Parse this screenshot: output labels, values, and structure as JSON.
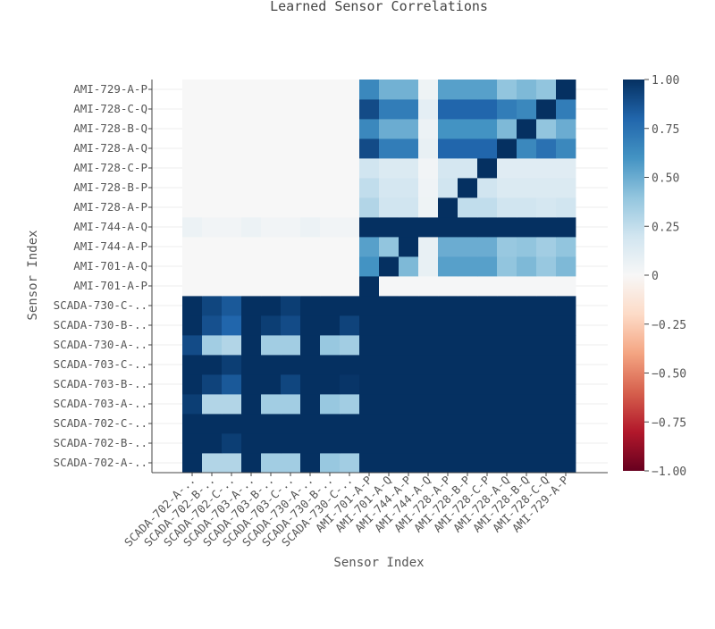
{
  "chart_data": {
    "type": "heatmap",
    "title": "Learned Sensor Correlations",
    "xlabel": "Sensor Index",
    "ylabel": "Sensor Index",
    "x_labels": [
      "SCADA-702-A-..",
      "SCADA-702-B-..",
      "SCADA-702-C-..",
      "SCADA-703-A-..",
      "SCADA-703-B-..",
      "SCADA-703-C-..",
      "SCADA-730-A-..",
      "SCADA-730-B-..",
      "SCADA-730-C-..",
      "AMI-701-A-P",
      "AMI-701-A-Q",
      "AMI-744-A-P",
      "AMI-744-A-Q",
      "AMI-728-A-P",
      "AMI-728-B-P",
      "AMI-728-C-P",
      "AMI-728-A-Q",
      "AMI-728-B-Q",
      "AMI-728-C-Q",
      "AMI-729-A-P"
    ],
    "y_labels": [
      "SCADA-702-A-..",
      "SCADA-702-B-..",
      "SCADA-702-C-..",
      "SCADA-703-A-..",
      "SCADA-703-B-..",
      "SCADA-703-C-..",
      "SCADA-730-A-..",
      "SCADA-730-B-..",
      "SCADA-730-C-..",
      "AMI-701-A-P",
      "AMI-701-A-Q",
      "AMI-744-A-P",
      "AMI-744-A-Q",
      "AMI-728-A-P",
      "AMI-728-B-P",
      "AMI-728-C-P",
      "AMI-728-A-Q",
      "AMI-728-B-Q",
      "AMI-728-C-Q",
      "AMI-729-A-P"
    ],
    "values": [
      [
        1.0,
        0.3,
        0.3,
        1.0,
        0.35,
        0.35,
        1.0,
        0.38,
        0.35,
        1,
        1,
        1,
        1,
        1,
        1,
        1,
        1,
        1,
        1,
        1
      ],
      [
        1.0,
        1.0,
        0.95,
        1.0,
        1.0,
        1.0,
        1.0,
        1.0,
        1.0,
        1,
        1,
        1,
        1,
        1,
        1,
        1,
        1,
        1,
        1,
        1
      ],
      [
        1.0,
        1.0,
        1.0,
        1.0,
        1.0,
        1.0,
        1.0,
        1.0,
        1.0,
        1,
        1,
        1,
        1,
        1,
        1,
        1,
        1,
        1,
        1,
        1
      ],
      [
        0.95,
        0.3,
        0.3,
        1.0,
        0.35,
        0.35,
        1.0,
        0.38,
        0.35,
        1,
        1,
        1,
        1,
        1,
        1,
        1,
        1,
        1,
        1,
        1
      ],
      [
        1.0,
        0.93,
        0.85,
        1.0,
        1.0,
        0.92,
        1.0,
        1.0,
        0.98,
        1,
        1,
        1,
        1,
        1,
        1,
        1,
        1,
        1,
        1,
        1
      ],
      [
        1.0,
        1.0,
        0.95,
        1.0,
        1.0,
        1.0,
        1.0,
        1.0,
        1.0,
        1,
        1,
        1,
        1,
        1,
        1,
        1,
        1,
        1,
        1,
        1
      ],
      [
        0.9,
        0.35,
        0.3,
        1.0,
        0.35,
        0.35,
        1.0,
        0.38,
        0.35,
        1,
        1,
        1,
        1,
        1,
        1,
        1,
        1,
        1,
        1,
        1
      ],
      [
        1.0,
        0.88,
        0.8,
        1.0,
        0.95,
        0.9,
        1.0,
        1.0,
        0.93,
        1,
        1,
        1,
        1,
        1,
        1,
        1,
        1,
        1,
        1,
        1
      ],
      [
        1.0,
        0.92,
        0.85,
        1.0,
        1.0,
        0.95,
        1.0,
        1.0,
        1.0,
        1,
        1,
        1,
        1,
        1,
        1,
        1,
        1,
        1,
        1,
        1
      ],
      [
        0,
        0,
        0,
        0,
        0,
        0,
        0,
        0,
        0,
        1.0,
        0.01,
        0.01,
        0.01,
        0.01,
        0.01,
        0.01,
        0.01,
        0.01,
        0.01,
        0.01
      ],
      [
        0,
        0,
        0,
        0,
        0,
        0,
        0,
        0,
        0,
        0.6,
        1.0,
        0.45,
        0.08,
        0.55,
        0.55,
        0.55,
        0.4,
        0.45,
        0.38,
        0.45
      ],
      [
        0,
        0,
        0,
        0,
        0,
        0,
        0,
        0,
        0,
        0.55,
        0.4,
        1.0,
        0.08,
        0.5,
        0.5,
        0.5,
        0.38,
        0.4,
        0.35,
        0.4
      ],
      [
        0.06,
        0.03,
        0.03,
        0.06,
        0.03,
        0.03,
        0.06,
        0.03,
        0.03,
        1,
        1,
        1,
        1,
        1,
        1,
        1,
        1,
        1,
        1,
        1
      ],
      [
        0,
        0,
        0,
        0,
        0,
        0,
        0,
        0,
        0,
        0.3,
        0.2,
        0.2,
        0.05,
        1.0,
        0.25,
        0.25,
        0.2,
        0.2,
        0.18,
        0.2
      ],
      [
        0,
        0,
        0,
        0,
        0,
        0,
        0,
        0,
        0,
        0.25,
        0.18,
        0.18,
        0.04,
        0.2,
        1.0,
        0.2,
        0.15,
        0.15,
        0.15,
        0.15
      ],
      [
        0,
        0,
        0,
        0,
        0,
        0,
        0,
        0,
        0,
        0.2,
        0.15,
        0.15,
        0.03,
        0.18,
        0.18,
        1.0,
        0.12,
        0.12,
        0.12,
        0.12
      ],
      [
        0,
        0,
        0,
        0,
        0,
        0,
        0,
        0,
        0,
        0.9,
        0.7,
        0.7,
        0.08,
        0.8,
        0.8,
        0.8,
        1.0,
        0.65,
        0.75,
        0.65
      ],
      [
        0,
        0,
        0,
        0,
        0,
        0,
        0,
        0,
        0,
        0.65,
        0.5,
        0.5,
        0.06,
        0.6,
        0.6,
        0.6,
        0.45,
        1.0,
        0.4,
        0.5
      ],
      [
        0,
        0,
        0,
        0,
        0,
        0,
        0,
        0,
        0,
        0.9,
        0.7,
        0.7,
        0.1,
        0.8,
        0.8,
        0.8,
        0.7,
        0.65,
        1.0,
        0.7
      ],
      [
        0,
        0,
        0,
        0,
        0,
        0,
        0,
        0,
        0,
        0.65,
        0.48,
        0.48,
        0.05,
        0.55,
        0.55,
        0.55,
        0.4,
        0.45,
        0.4,
        1.0
      ]
    ],
    "zlim": [
      -1,
      1
    ],
    "colorbar_ticks": [
      {
        "value": 1.0,
        "label": "1.00"
      },
      {
        "value": 0.75,
        "label": "0.75"
      },
      {
        "value": 0.5,
        "label": "0.50"
      },
      {
        "value": 0.25,
        "label": "0.25"
      },
      {
        "value": 0,
        "label": "0"
      },
      {
        "value": -0.25,
        "label": "−0.25"
      },
      {
        "value": -0.5,
        "label": "−0.50"
      },
      {
        "value": -0.75,
        "label": "−0.75"
      },
      {
        "value": -1.0,
        "label": "−1.00"
      }
    ],
    "colorscale": [
      "#67001f",
      "#b2182b",
      "#d6604d",
      "#f4a582",
      "#fddbc7",
      "#f7f7f7",
      "#d1e5f0",
      "#92c5de",
      "#4393c3",
      "#2166ac",
      "#053061"
    ],
    "grid": true
  }
}
